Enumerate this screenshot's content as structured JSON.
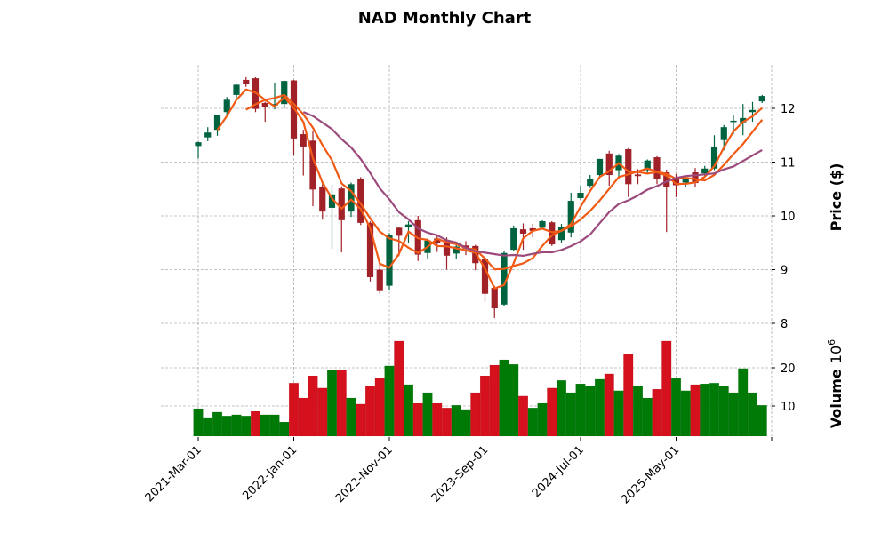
{
  "chart_data": {
    "type": "candlestick",
    "title": "NAD Monthly Chart",
    "ylabel_price": "Price ($)",
    "ylabel_volume": "Volume",
    "volume_multiplier": "10",
    "volume_exponent": "6",
    "price_ylim": [
      7.95,
      12.8
    ],
    "volume_ylim": [
      2,
      31.6
    ],
    "price_ticks": [
      "8",
      "9",
      "10",
      "11",
      "12"
    ],
    "volume_ticks": [
      "10",
      "20"
    ],
    "x_tick_labels": [
      "2021-Mar-01",
      "2022-Jan-01",
      "2022-Nov-01",
      "2023-Sep-01",
      "2024-Jul-01",
      "2025-May-01"
    ],
    "grid": true,
    "moving_averages": [
      {
        "period": 3,
        "color": "#f05a14"
      },
      {
        "period": 6,
        "color": "#f05a14"
      },
      {
        "period": 12,
        "color": "#9c4a7c"
      }
    ],
    "colors": {
      "candle_up": "#006340",
      "candle_down": "#a02128",
      "volume_up": "#007a06",
      "volume_down": "#d4111c"
    },
    "dates": [
      "2021-03",
      "2021-04",
      "2021-05",
      "2021-06",
      "2021-07",
      "2021-08",
      "2021-09",
      "2021-10",
      "2021-11",
      "2021-12",
      "2022-01",
      "2022-02",
      "2022-03",
      "2022-04",
      "2022-05",
      "2022-06",
      "2022-07",
      "2022-08",
      "2022-09",
      "2022-10",
      "2022-11",
      "2022-12",
      "2023-01",
      "2023-02",
      "2023-03",
      "2023-04",
      "2023-05",
      "2023-06",
      "2023-07",
      "2023-08",
      "2023-09",
      "2023-10",
      "2023-11",
      "2023-12",
      "2024-01",
      "2024-02",
      "2024-03",
      "2024-04",
      "2024-05",
      "2024-06",
      "2024-07",
      "2024-08",
      "2024-09",
      "2024-10",
      "2024-11",
      "2024-12",
      "2025-01",
      "2025-02",
      "2025-03",
      "2025-04",
      "2025-05",
      "2025-06",
      "2025-07",
      "2025-08",
      "2025-09",
      "2025-10",
      "2025-11",
      "2025-12",
      "2026-01",
      "2026-02"
    ],
    "ohlc": [
      [
        11.3,
        11.38,
        11.07,
        11.37
      ],
      [
        11.46,
        11.65,
        11.39,
        11.55
      ],
      [
        11.6,
        11.88,
        11.49,
        11.87
      ],
      [
        11.93,
        12.21,
        11.88,
        12.16
      ],
      [
        12.25,
        12.46,
        12.2,
        12.44
      ],
      [
        12.53,
        12.58,
        12.4,
        12.45
      ],
      [
        12.56,
        12.58,
        11.93,
        11.99
      ],
      [
        12.1,
        12.12,
        11.75,
        12.03
      ],
      [
        12.05,
        12.48,
        11.98,
        12.08
      ],
      [
        12.08,
        12.52,
        12.0,
        12.51
      ],
      [
        12.52,
        12.53,
        11.12,
        11.44
      ],
      [
        11.52,
        11.6,
        10.75,
        11.29
      ],
      [
        11.4,
        11.57,
        10.18,
        10.49
      ],
      [
        10.54,
        10.6,
        9.93,
        10.08
      ],
      [
        10.15,
        10.58,
        9.39,
        10.4
      ],
      [
        10.51,
        10.55,
        9.32,
        9.92
      ],
      [
        10.08,
        10.62,
        9.98,
        10.59
      ],
      [
        10.69,
        10.72,
        9.83,
        9.87
      ],
      [
        9.87,
        9.9,
        8.78,
        8.86
      ],
      [
        9.0,
        9.2,
        8.55,
        8.6
      ],
      [
        8.7,
        9.68,
        8.62,
        9.65
      ],
      [
        9.78,
        9.8,
        9.25,
        9.63
      ],
      [
        9.79,
        9.9,
        9.5,
        9.84
      ],
      [
        9.92,
        10.0,
        9.16,
        9.28
      ],
      [
        9.31,
        9.58,
        9.2,
        9.54
      ],
      [
        9.58,
        9.65,
        9.33,
        9.5
      ],
      [
        9.54,
        9.6,
        9.0,
        9.26
      ],
      [
        9.3,
        9.5,
        9.2,
        9.43
      ],
      [
        9.45,
        9.53,
        9.27,
        9.39
      ],
      [
        9.44,
        9.46,
        8.99,
        9.12
      ],
      [
        9.19,
        9.22,
        8.4,
        8.55
      ],
      [
        8.66,
        8.7,
        8.1,
        8.28
      ],
      [
        8.35,
        9.35,
        8.33,
        9.31
      ],
      [
        9.37,
        9.82,
        9.35,
        9.77
      ],
      [
        9.75,
        9.86,
        9.37,
        9.67
      ],
      [
        9.77,
        9.85,
        9.6,
        9.72
      ],
      [
        9.78,
        9.92,
        9.75,
        9.9
      ],
      [
        9.88,
        9.9,
        9.44,
        9.47
      ],
      [
        9.55,
        9.85,
        9.5,
        9.8
      ],
      [
        9.69,
        10.43,
        9.6,
        10.28
      ],
      [
        10.33,
        10.56,
        10.3,
        10.43
      ],
      [
        10.56,
        10.76,
        10.52,
        10.68
      ],
      [
        10.76,
        11.06,
        10.72,
        11.06
      ],
      [
        11.16,
        11.21,
        10.56,
        10.76
      ],
      [
        10.85,
        11.15,
        10.68,
        11.12
      ],
      [
        11.24,
        11.26,
        10.35,
        10.59
      ],
      [
        10.77,
        10.87,
        10.59,
        10.74
      ],
      [
        10.85,
        11.05,
        10.8,
        11.03
      ],
      [
        11.09,
        11.11,
        10.59,
        10.68
      ],
      [
        10.81,
        10.86,
        9.7,
        10.53
      ],
      [
        10.68,
        10.78,
        10.35,
        10.57
      ],
      [
        10.62,
        10.72,
        10.53,
        10.69
      ],
      [
        10.81,
        10.89,
        10.53,
        10.61
      ],
      [
        10.79,
        10.93,
        10.74,
        10.88
      ],
      [
        10.88,
        11.5,
        10.85,
        11.29
      ],
      [
        11.41,
        11.69,
        11.22,
        11.65
      ],
      [
        11.75,
        11.88,
        11.52,
        11.77
      ],
      [
        11.74,
        12.08,
        11.5,
        11.82
      ],
      [
        11.93,
        12.12,
        11.75,
        11.97
      ],
      [
        12.13,
        12.25,
        12.1,
        12.23
      ]
    ],
    "volume": [
      9.3,
      7.0,
      8.4,
      7.4,
      7.7,
      7.4,
      8.6,
      7.7,
      7.7,
      5.8,
      16.0,
      12.1,
      17.9,
      14.7,
      19.3,
      19.5,
      12.1,
      10.5,
      15.3,
      17.4,
      20.5,
      27.0,
      15.6,
      10.7,
      13.5,
      10.7,
      9.5,
      10.2,
      9.1,
      13.5,
      17.9,
      20.7,
      22.1,
      20.9,
      12.6,
      9.5,
      10.7,
      14.7,
      16.7,
      13.5,
      15.8,
      15.3,
      17.0,
      18.4,
      14.0,
      23.7,
      15.3,
      12.1,
      14.4,
      27.0,
      17.2,
      14.0,
      15.6,
      15.8,
      16.0,
      15.3,
      13.5,
      19.8,
      13.5,
      10.2
    ],
    "volume_up": [
      1,
      1,
      1,
      1,
      1,
      1,
      0,
      1,
      1,
      1,
      0,
      0,
      0,
      0,
      1,
      0,
      1,
      0,
      0,
      0,
      1,
      0,
      1,
      0,
      1,
      0,
      0,
      1,
      1,
      0,
      0,
      0,
      1,
      1,
      0,
      1,
      1,
      0,
      1,
      1,
      1,
      1,
      1,
      0,
      1,
      0,
      1,
      1,
      0,
      0,
      1,
      1,
      0,
      1,
      1,
      1,
      1,
      1,
      1,
      1
    ]
  }
}
